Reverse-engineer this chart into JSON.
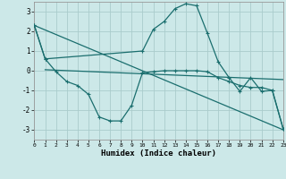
{
  "xlabel": "Humidex (Indice chaleur)",
  "bg_color": "#cce8e8",
  "grid_color": "#aacccc",
  "line_color": "#1a6e6e",
  "xlim": [
    0,
    23
  ],
  "ylim": [
    -3.5,
    3.5
  ],
  "yticks": [
    -3,
    -2,
    -1,
    0,
    1,
    2,
    3
  ],
  "xticks": [
    0,
    1,
    2,
    3,
    4,
    5,
    6,
    7,
    8,
    9,
    10,
    11,
    12,
    13,
    14,
    15,
    16,
    17,
    18,
    19,
    20,
    21,
    22,
    23
  ],
  "line1_x": [
    0,
    1,
    10,
    11,
    12,
    13,
    14,
    15,
    16,
    17,
    18,
    19,
    20,
    21,
    22,
    23
  ],
  "line1_y": [
    2.3,
    0.6,
    1.0,
    2.1,
    2.5,
    3.15,
    3.4,
    3.3,
    1.9,
    0.45,
    -0.35,
    -1.05,
    -0.35,
    -1.05,
    -1.0,
    -2.95
  ],
  "line2_x": [
    0,
    1,
    2,
    3,
    4,
    5,
    6,
    7,
    8,
    9,
    10,
    11,
    12,
    13,
    14,
    15,
    16,
    17,
    18,
    19,
    20,
    21,
    22,
    23
  ],
  "line2_y": [
    2.3,
    0.6,
    -0.05,
    -0.55,
    -0.75,
    -1.2,
    -2.35,
    -2.55,
    -2.55,
    -1.75,
    -0.1,
    -0.05,
    0.0,
    0.0,
    0.0,
    0.0,
    -0.05,
    -0.35,
    -0.55,
    -0.75,
    -0.85,
    -0.85,
    -1.0,
    -2.95
  ],
  "line3_x": [
    0,
    23
  ],
  "line3_y": [
    2.3,
    -3.0
  ],
  "line4_x": [
    1,
    23
  ],
  "line4_y": [
    0.05,
    -0.45
  ]
}
